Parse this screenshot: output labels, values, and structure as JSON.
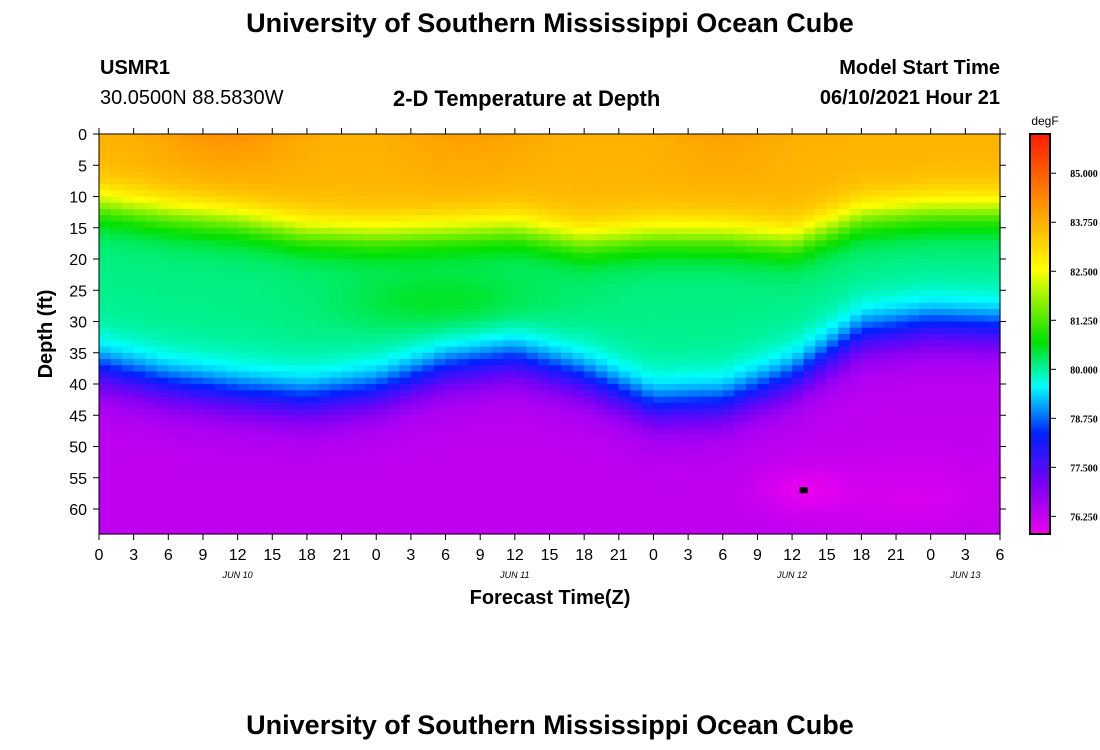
{
  "header": {
    "title": "University of Southern Mississippi Ocean Cube",
    "station": "USMR1",
    "coords": "30.0500N  88.5830W",
    "subtitle": "2-D Temperature at Depth",
    "model_label": "Model Start Time",
    "model_time": "06/10/2021 Hour 21"
  },
  "footer": {
    "title": "University of Southern Mississippi Ocean Cube"
  },
  "chart_data": {
    "type": "heatmap",
    "title": "2-D Temperature at Depth",
    "xlabel": "Forecast Time(Z)",
    "ylabel": "Depth (ft)",
    "x_ticks": [
      "0",
      "3",
      "6",
      "9",
      "12",
      "15",
      "18",
      "21",
      "0",
      "3",
      "6",
      "9",
      "12",
      "15",
      "18",
      "21",
      "0",
      "3",
      "6",
      "9",
      "12",
      "15",
      "18",
      "21",
      "0",
      "3",
      "6"
    ],
    "x_range_hours": [
      0,
      78
    ],
    "day_labels": [
      {
        "label": "JUN 10",
        "hour": 12
      },
      {
        "label": "JUN 11",
        "hour": 36
      },
      {
        "label": "JUN 12",
        "hour": 60
      },
      {
        "label": "JUN 13",
        "hour": 75
      }
    ],
    "y_ticks": [
      0,
      5,
      10,
      15,
      20,
      25,
      30,
      35,
      40,
      45,
      50,
      55,
      60
    ],
    "ylim": [
      0,
      64
    ],
    "colorbar": {
      "unit": "degF",
      "range": [
        75.8,
        86.0
      ],
      "labels": [
        "85.000",
        "83.750",
        "82.500",
        "81.250",
        "80.000",
        "78.750",
        "77.500",
        "76.250"
      ]
    },
    "layer_boundaries_ft": {
      "hours": [
        0,
        6,
        12,
        18,
        24,
        30,
        36,
        42,
        48,
        54,
        60,
        66,
        72,
        78
      ],
      "warm_layer_top": [
        11,
        12.5,
        13.5,
        15.5,
        16,
        15.5,
        15,
        17,
        16,
        16,
        17,
        13,
        12,
        12
      ],
      "thermocline_mid": [
        37.5,
        40,
        41.5,
        42.5,
        41,
        37.5,
        36,
        39,
        43.5,
        43,
        39,
        32,
        30.5,
        31
      ]
    },
    "surface_max_degF": 85.0,
    "bottom_min_degF": 76.0,
    "marker": {
      "hour": 61,
      "depth_ft": 57
    }
  }
}
